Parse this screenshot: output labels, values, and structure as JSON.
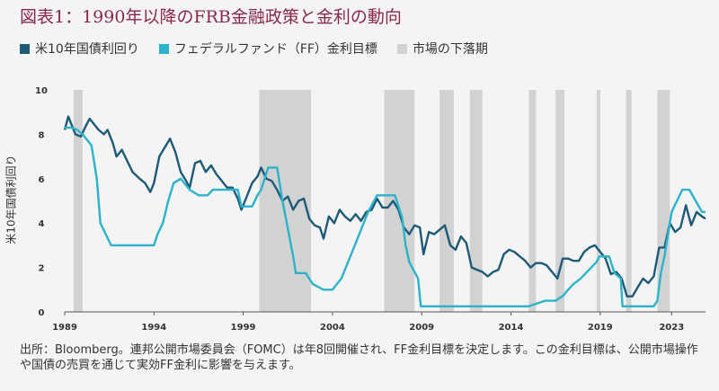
{
  "title": "図表1：1990年以降のFRB金融政策と金利の動向",
  "legend": [
    {
      "label": "米10年国債利回り",
      "color": "#1d5a78"
    },
    {
      "label": "フェデラルファンド（FF）金利目標",
      "color": "#2bb3cb"
    },
    {
      "label": "市場の下落期",
      "color": "#d2d2d2"
    }
  ],
  "footnote": "出所：Bloomberg。連邦公開市場委員会（FOMC）は年8回開催され、FF金利目標を決定します。この金利目標は、公開市場操作や国債の売買を通じて実効FF金利に影響を与えます。",
  "chart_data": {
    "type": "line",
    "ylabel": "米10年国債利回り",
    "xlim": [
      1989.0,
      2024.9
    ],
    "ylim": [
      0,
      10
    ],
    "x_ticks": [
      {
        "value": 1989.0,
        "label": "1989"
      },
      {
        "value": 1994.0,
        "label": "1994"
      },
      {
        "value": 1999.0,
        "label": "1999"
      },
      {
        "value": 2004.0,
        "label": "2004"
      },
      {
        "value": 2009.0,
        "label": "2009"
      },
      {
        "value": 2014.0,
        "label": "2014"
      },
      {
        "value": 2019.0,
        "label": "2019"
      },
      {
        "value": 2023.0,
        "label": "2023"
      }
    ],
    "y_ticks": [
      0,
      2,
      4,
      6,
      8,
      10
    ],
    "shaded_periods": [
      [
        1989.5,
        1990.0
      ],
      [
        1999.9,
        2002.8
      ],
      [
        2006.9,
        2008.6
      ],
      [
        2010.0,
        2010.8
      ],
      [
        2011.7,
        2012.4
      ],
      [
        2015.0,
        2015.4
      ],
      [
        2016.5,
        2017.0
      ],
      [
        2018.8,
        2019.0
      ],
      [
        2020.45,
        2020.75
      ],
      [
        2022.2,
        2022.9
      ]
    ],
    "series": [
      {
        "name": "米10年国債利回り",
        "color": "#1d5a78",
        "x": [
          1989.0,
          1989.2,
          1989.4,
          1989.6,
          1989.9,
          1990.2,
          1990.4,
          1990.6,
          1990.9,
          1991.2,
          1991.4,
          1991.7,
          1991.9,
          1992.2,
          1992.5,
          1992.8,
          1993.2,
          1993.5,
          1993.8,
          1994.0,
          1994.3,
          1994.6,
          1994.9,
          1995.2,
          1995.5,
          1995.8,
          1996.0,
          1996.3,
          1996.6,
          1996.9,
          1997.2,
          1997.5,
          1997.8,
          1998.1,
          1998.4,
          1998.7,
          1998.9,
          1999.2,
          1999.5,
          1999.8,
          2000.0,
          2000.3,
          2000.6,
          2000.9,
          2001.2,
          2001.5,
          2001.8,
          2002.1,
          2002.4,
          2002.7,
          2003.0,
          2003.3,
          2003.5,
          2003.8,
          2004.1,
          2004.4,
          2004.7,
          2005.0,
          2005.3,
          2005.6,
          2005.9,
          2006.2,
          2006.5,
          2006.8,
          2007.1,
          2007.4,
          2007.7,
          2008.0,
          2008.3,
          2008.6,
          2008.9,
          2009.1,
          2009.4,
          2009.7,
          2010.0,
          2010.3,
          2010.6,
          2010.9,
          2011.2,
          2011.5,
          2011.8,
          2012.1,
          2012.4,
          2012.7,
          2013.0,
          2013.3,
          2013.6,
          2013.9,
          2014.2,
          2014.5,
          2014.8,
          2015.1,
          2015.4,
          2015.7,
          2016.0,
          2016.3,
          2016.6,
          2016.9,
          2017.2,
          2017.5,
          2017.8,
          2018.1,
          2018.4,
          2018.7,
          2019.0,
          2019.3,
          2019.6,
          2019.9,
          2020.2,
          2020.5,
          2020.8,
          2021.1,
          2021.4,
          2021.7,
          2022.0,
          2022.3,
          2022.6,
          2022.9,
          2023.2,
          2023.5,
          2023.8,
          2024.1,
          2024.4,
          2024.7,
          2024.9
        ],
        "values": [
          8.2,
          8.8,
          8.4,
          8.0,
          7.9,
          8.4,
          8.7,
          8.5,
          8.2,
          8.0,
          8.2,
          7.6,
          7.0,
          7.3,
          6.8,
          6.3,
          6.0,
          5.8,
          5.4,
          5.8,
          7.0,
          7.4,
          7.8,
          7.2,
          6.3,
          5.9,
          5.6,
          6.7,
          6.8,
          6.3,
          6.6,
          6.2,
          5.9,
          5.6,
          5.6,
          5.1,
          4.6,
          5.2,
          5.8,
          6.1,
          6.5,
          6.0,
          5.9,
          5.5,
          5.0,
          5.2,
          4.6,
          5.0,
          5.1,
          4.2,
          3.9,
          3.8,
          3.3,
          4.3,
          4.0,
          4.6,
          4.3,
          4.1,
          4.4,
          4.1,
          4.5,
          4.6,
          5.1,
          4.7,
          4.7,
          5.0,
          4.6,
          3.8,
          3.5,
          3.9,
          3.8,
          2.6,
          3.6,
          3.5,
          3.7,
          3.9,
          3.0,
          2.8,
          3.4,
          3.1,
          2.0,
          1.9,
          1.8,
          1.6,
          1.8,
          1.9,
          2.6,
          2.8,
          2.7,
          2.5,
          2.3,
          2.0,
          2.2,
          2.2,
          2.1,
          1.8,
          1.5,
          2.4,
          2.4,
          2.3,
          2.3,
          2.7,
          2.9,
          3.0,
          2.7,
          2.4,
          1.7,
          1.8,
          1.5,
          0.7,
          0.7,
          1.1,
          1.5,
          1.3,
          1.6,
          2.9,
          2.9,
          4.0,
          3.6,
          3.8,
          4.8,
          3.9,
          4.5,
          4.3,
          4.2
        ],
        "notes": "monthly-level detail approximated from gridlines"
      },
      {
        "name": "フェデラルファンド（FF）金利目標",
        "color": "#2bb3cb",
        "x": [
          1989.0,
          1989.4,
          1989.7,
          1990.0,
          1990.5,
          1990.8,
          1991.0,
          1991.3,
          1991.6,
          1991.9,
          1992.2,
          1992.5,
          1992.8,
          1993.0,
          1993.5,
          1994.0,
          1994.2,
          1994.5,
          1994.8,
          1995.1,
          1995.5,
          1996.0,
          1996.5,
          1997.0,
          1997.3,
          1997.8,
          1998.5,
          1998.7,
          1998.9,
          1999.5,
          1999.8,
          2000.0,
          2000.4,
          2000.9,
          2001.0,
          2001.2,
          2001.5,
          2001.8,
          2001.95,
          2002.5,
          2002.9,
          2003.5,
          2004.0,
          2004.5,
          2005.0,
          2005.5,
          2006.0,
          2006.5,
          2007.0,
          2007.5,
          2007.7,
          2007.9,
          2008.1,
          2008.3,
          2008.8,
          2008.95,
          2009.5,
          2010.0,
          2011.0,
          2012.0,
          2013.0,
          2014.0,
          2015.0,
          2015.9,
          2016.5,
          2016.95,
          2017.2,
          2017.5,
          2017.9,
          2018.2,
          2018.5,
          2018.8,
          2018.95,
          2019.5,
          2019.6,
          2019.8,
          2020.15,
          2020.25,
          2021.0,
          2022.0,
          2022.2,
          2022.4,
          2022.6,
          2022.8,
          2023.0,
          2023.3,
          2023.6,
          2024.0,
          2024.7,
          2024.9
        ],
        "values": [
          8.3,
          8.3,
          8.2,
          8.0,
          7.5,
          6.0,
          4.0,
          3.5,
          3.0,
          3.0,
          3.0,
          3.0,
          3.0,
          3.0,
          3.0,
          3.0,
          3.5,
          4.0,
          5.0,
          5.8,
          6.0,
          5.5,
          5.25,
          5.25,
          5.5,
          5.5,
          5.5,
          5.5,
          4.75,
          4.75,
          5.25,
          5.5,
          6.5,
          6.5,
          6.0,
          5.0,
          3.75,
          2.5,
          1.75,
          1.75,
          1.25,
          1.0,
          1.0,
          1.5,
          2.5,
          3.5,
          4.5,
          5.25,
          5.25,
          5.25,
          4.75,
          4.25,
          3.0,
          2.25,
          1.5,
          0.25,
          0.25,
          0.25,
          0.25,
          0.25,
          0.25,
          0.25,
          0.25,
          0.5,
          0.5,
          0.75,
          1.0,
          1.25,
          1.5,
          1.75,
          2.0,
          2.25,
          2.5,
          2.5,
          2.25,
          1.75,
          1.5,
          0.25,
          0.25,
          0.25,
          0.5,
          1.75,
          2.5,
          3.5,
          4.5,
          5.0,
          5.5,
          5.5,
          4.5,
          4.5
        ]
      }
    ]
  }
}
